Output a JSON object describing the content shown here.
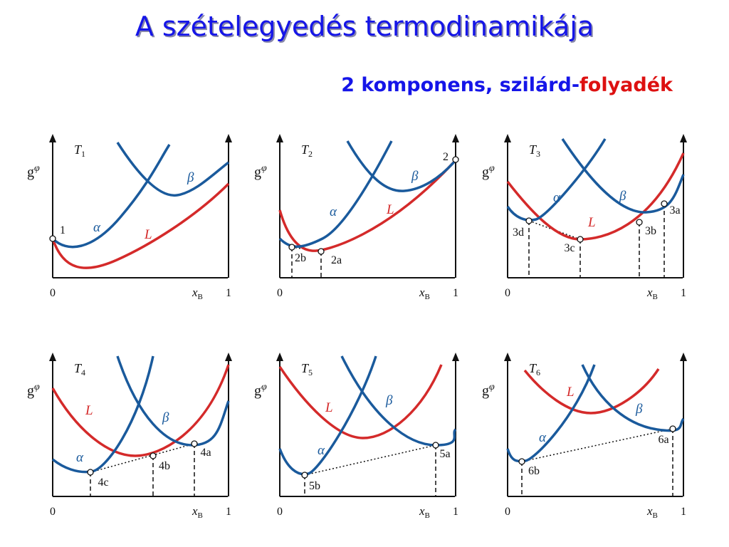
{
  "header": {
    "title": "A szételegyedés termodinamikája",
    "subtitle": {
      "main": "2 komponens, szilárd-",
      "highlight": "folyadék"
    }
  },
  "panels": [
    {
      "temperature": {
        "symbol": "T",
        "index": "1"
      },
      "y_label": {
        "symbol": "g",
        "superscript": "φ"
      },
      "x_label": {
        "symbol": "x",
        "subscript": "B"
      },
      "x_ticks": [
        "0",
        "1"
      ],
      "curves": {
        "alpha": "α",
        "beta": "β",
        "liquid": "L"
      },
      "points": [
        "1"
      ]
    },
    {
      "temperature": {
        "symbol": "T",
        "index": "2"
      },
      "y_label": {
        "symbol": "g",
        "superscript": "φ"
      },
      "x_label": {
        "symbol": "x",
        "subscript": "B"
      },
      "x_ticks": [
        "0",
        "1"
      ],
      "curves": {
        "alpha": "α",
        "beta": "β",
        "liquid": "L"
      },
      "points": [
        "2",
        "2b",
        "2a"
      ]
    },
    {
      "temperature": {
        "symbol": "T",
        "index": "3"
      },
      "y_label": {
        "symbol": "g",
        "superscript": "φ"
      },
      "x_label": {
        "symbol": "x",
        "subscript": "B"
      },
      "x_ticks": [
        "0",
        "1"
      ],
      "curves": {
        "alpha": "α",
        "beta": "β",
        "liquid": "L"
      },
      "points": [
        "3d",
        "3c",
        "3b",
        "3a"
      ]
    },
    {
      "temperature": {
        "symbol": "T",
        "index": "4"
      },
      "y_label": {
        "symbol": "g",
        "superscript": "φ"
      },
      "x_label": {
        "symbol": "x",
        "subscript": "B"
      },
      "x_ticks": [
        "0",
        "1"
      ],
      "curves": {
        "alpha": "α",
        "beta": "β",
        "liquid": "L"
      },
      "points": [
        "4c",
        "4b",
        "4a"
      ]
    },
    {
      "temperature": {
        "symbol": "T",
        "index": "5"
      },
      "y_label": {
        "symbol": "g",
        "superscript": "φ"
      },
      "x_label": {
        "symbol": "x",
        "subscript": "B"
      },
      "x_ticks": [
        "0",
        "1"
      ],
      "curves": {
        "alpha": "α",
        "beta": "β",
        "liquid": "L"
      },
      "points": [
        "5b",
        "5a"
      ]
    },
    {
      "temperature": {
        "symbol": "T",
        "index": "6"
      },
      "y_label": {
        "symbol": "g",
        "superscript": "φ"
      },
      "x_label": {
        "symbol": "x",
        "subscript": "B"
      },
      "x_ticks": [
        "0",
        "1"
      ],
      "curves": {
        "alpha": "α",
        "beta": "β",
        "liquid": "L"
      },
      "points": [
        "6b",
        "6a"
      ]
    }
  ]
}
